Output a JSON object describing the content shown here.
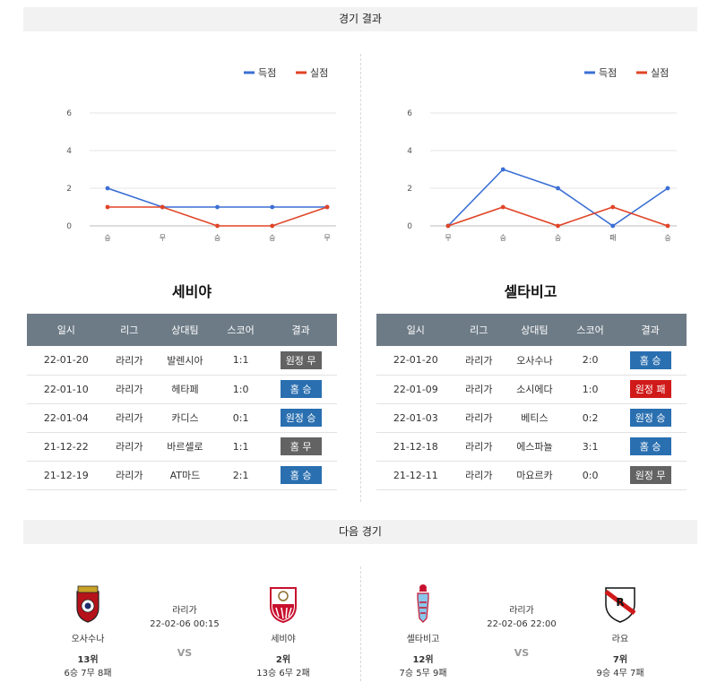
{
  "headers": {
    "results": "경기 결과",
    "next": "다음 경기"
  },
  "legend": {
    "scored": "득점",
    "conceded": "실점"
  },
  "colors": {
    "scored": "#3b6fd4",
    "conceded": "#e04427",
    "win": "#2a6fb0",
    "draw": "#636363",
    "lose": "#d01a1a"
  },
  "chart_data": [
    {
      "type": "line",
      "title": "",
      "categories": [
        "승",
        "무",
        "승",
        "승",
        "무"
      ],
      "ylim": [
        0,
        6
      ],
      "yticks": [
        0,
        2,
        4,
        6
      ],
      "series": [
        {
          "name": "득점",
          "values": [
            2,
            1,
            1,
            1,
            1
          ]
        },
        {
          "name": "실점",
          "values": [
            1,
            1,
            0,
            0,
            1
          ]
        }
      ],
      "legend_position": "top-right",
      "grid": true
    },
    {
      "type": "line",
      "title": "",
      "categories": [
        "무",
        "승",
        "승",
        "패",
        "승"
      ],
      "ylim": [
        0,
        6
      ],
      "yticks": [
        0,
        2,
        4,
        6
      ],
      "series": [
        {
          "name": "득점",
          "values": [
            0,
            3,
            2,
            0,
            2
          ]
        },
        {
          "name": "실점",
          "values": [
            0,
            1,
            0,
            1,
            0
          ]
        }
      ],
      "legend_position": "top-right",
      "grid": true
    }
  ],
  "table_headers": [
    "일시",
    "리그",
    "상대팀",
    "스코어",
    "결과"
  ],
  "teams": [
    {
      "name": "세비야",
      "rows": [
        {
          "date": "22-01-20",
          "league": "라리가",
          "opponent": "발렌시아",
          "score": "1:1",
          "result": "원정 무",
          "kind": "draw"
        },
        {
          "date": "22-01-10",
          "league": "라리가",
          "opponent": "헤타페",
          "score": "1:0",
          "result": "홈 승",
          "kind": "win"
        },
        {
          "date": "22-01-04",
          "league": "라리가",
          "opponent": "카디스",
          "score": "0:1",
          "result": "원정 승",
          "kind": "win"
        },
        {
          "date": "21-12-22",
          "league": "라리가",
          "opponent": "바르셀로",
          "score": "1:1",
          "result": "홈 무",
          "kind": "draw"
        },
        {
          "date": "21-12-19",
          "league": "라리가",
          "opponent": "AT마드",
          "score": "2:1",
          "result": "홈 승",
          "kind": "win"
        }
      ]
    },
    {
      "name": "셀타비고",
      "rows": [
        {
          "date": "22-01-20",
          "league": "라리가",
          "opponent": "오사수나",
          "score": "2:0",
          "result": "홈 승",
          "kind": "win"
        },
        {
          "date": "22-01-09",
          "league": "라리가",
          "opponent": "소시에다",
          "score": "1:0",
          "result": "원정 패",
          "kind": "lose"
        },
        {
          "date": "22-01-03",
          "league": "라리가",
          "opponent": "베티스",
          "score": "0:2",
          "result": "원정 승",
          "kind": "win"
        },
        {
          "date": "21-12-18",
          "league": "라리가",
          "opponent": "에스파뇰",
          "score": "3:1",
          "result": "홈 승",
          "kind": "win"
        },
        {
          "date": "21-12-11",
          "league": "라리가",
          "opponent": "마요르카",
          "score": "0:0",
          "result": "원정 무",
          "kind": "draw"
        }
      ]
    }
  ],
  "next_matches": [
    {
      "league": "라리가",
      "datetime": "22-02-06 00:15",
      "vs": "VS",
      "home": {
        "name": "오사수나",
        "rank": "13위",
        "record": "6승 7무 8패",
        "logo": "osasuna-logo"
      },
      "away": {
        "name": "세비야",
        "rank": "2위",
        "record": "13승 6무 2패",
        "logo": "sevilla-logo"
      }
    },
    {
      "league": "라리가",
      "datetime": "22-02-06 22:00",
      "vs": "VS",
      "home": {
        "name": "셀타비고",
        "rank": "12위",
        "record": "7승 5무 9패",
        "logo": "celta-logo"
      },
      "away": {
        "name": "라요",
        "rank": "7위",
        "record": "9승 4무 7패",
        "logo": "rayo-logo"
      }
    }
  ]
}
